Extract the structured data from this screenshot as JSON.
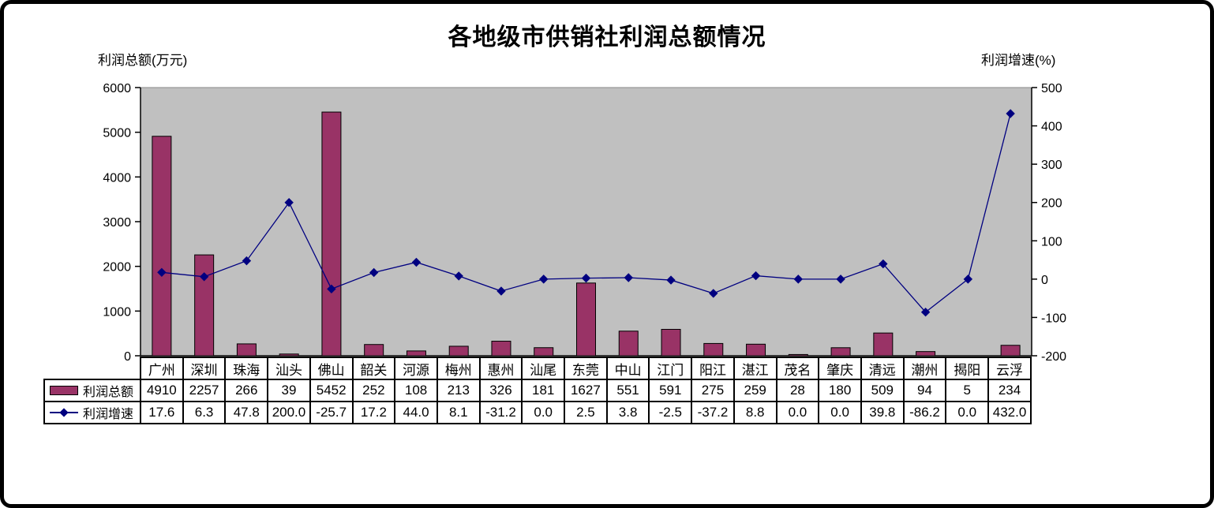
{
  "chart_data": {
    "type": "bar+line",
    "title": "各地级市供销社利润总额情况",
    "categories": [
      "广州",
      "深圳",
      "珠海",
      "汕头",
      "佛山",
      "韶关",
      "河源",
      "梅州",
      "惠州",
      "汕尾",
      "东莞",
      "中山",
      "江门",
      "阳江",
      "湛江",
      "茂名",
      "肇庆",
      "清远",
      "潮州",
      "揭阳",
      "云浮"
    ],
    "series": [
      {
        "name": "利润总额",
        "type": "bar",
        "axis": "left",
        "values": [
          4910,
          2257,
          266,
          39,
          5452,
          252,
          108,
          213,
          326,
          181,
          1627,
          551,
          591,
          275,
          259,
          28,
          180,
          509,
          94,
          5,
          234
        ]
      },
      {
        "name": "利润增速",
        "type": "line",
        "axis": "right",
        "values": [
          17.6,
          6.3,
          47.8,
          200.0,
          -25.7,
          17.2,
          44.0,
          8.1,
          -31.2,
          0.0,
          2.5,
          3.8,
          -2.5,
          -37.2,
          8.8,
          0.0,
          0.0,
          39.8,
          -86.2,
          0.0,
          432.0
        ]
      }
    ],
    "axes": {
      "left": {
        "label": "利润总额(万元)",
        "min": 0,
        "max": 6000,
        "step": 1000
      },
      "right": {
        "label": "利润增速(%)",
        "min": -200,
        "max": 500,
        "step": 100
      }
    },
    "grid": false,
    "data_table": true,
    "legend_position": "data-table-left"
  },
  "colors": {
    "bar_fill": "#993366",
    "bar_stroke": "#000000",
    "line": "#000080",
    "marker": "#000080",
    "plot_bg": "#C0C0C0",
    "axis": "#000000",
    "frame": "#000000"
  }
}
